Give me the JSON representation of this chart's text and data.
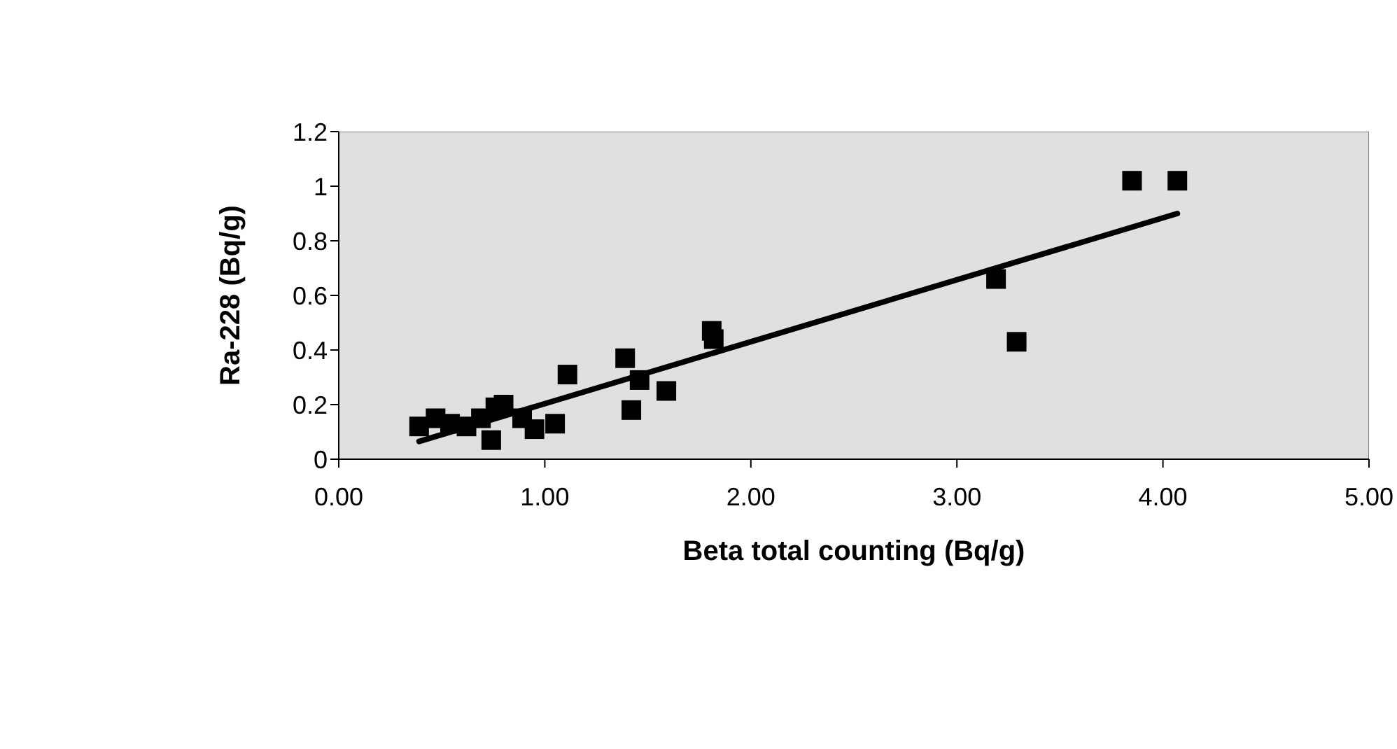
{
  "chart_data": {
    "type": "scatter",
    "xlabel": "Beta total counting (Bq/g)",
    "ylabel": "Ra-228 (Bq/g)",
    "xlim": [
      0,
      5
    ],
    "xticks": [
      {
        "value": 0,
        "label": "0.00"
      },
      {
        "value": 1,
        "label": "1.00"
      },
      {
        "value": 2,
        "label": "2.00"
      },
      {
        "value": 3,
        "label": "3.00"
      },
      {
        "value": 4,
        "label": "4.00"
      },
      {
        "value": 5,
        "label": "5.00"
      }
    ],
    "ylim": [
      0,
      1.2
    ],
    "yticks": [
      0,
      0.2,
      0.4,
      0.6,
      0.8,
      1,
      1.2
    ],
    "grid": false,
    "legend": false,
    "series": [
      {
        "marker": "square",
        "color": "#000000",
        "x": [
          0.39,
          0.47,
          0.54,
          0.62,
          0.69,
          0.74,
          0.76,
          0.8,
          0.89,
          0.95,
          1.05,
          1.11,
          1.39,
          1.46,
          1.42,
          1.59,
          1.81,
          1.82,
          3.19,
          3.29,
          3.85,
          4.07
        ],
        "values": [
          0.12,
          0.15,
          0.13,
          0.12,
          0.15,
          0.07,
          0.19,
          0.2,
          0.15,
          0.11,
          0.13,
          0.31,
          0.37,
          0.29,
          0.18,
          0.25,
          0.47,
          0.44,
          0.66,
          0.43,
          1.02,
          1.02
        ]
      },
      {
        "type": "line",
        "marker": "none",
        "color": "#000000",
        "x": [
          0.39,
          4.07
        ],
        "values": [
          0.065,
          0.9
        ]
      }
    ]
  }
}
